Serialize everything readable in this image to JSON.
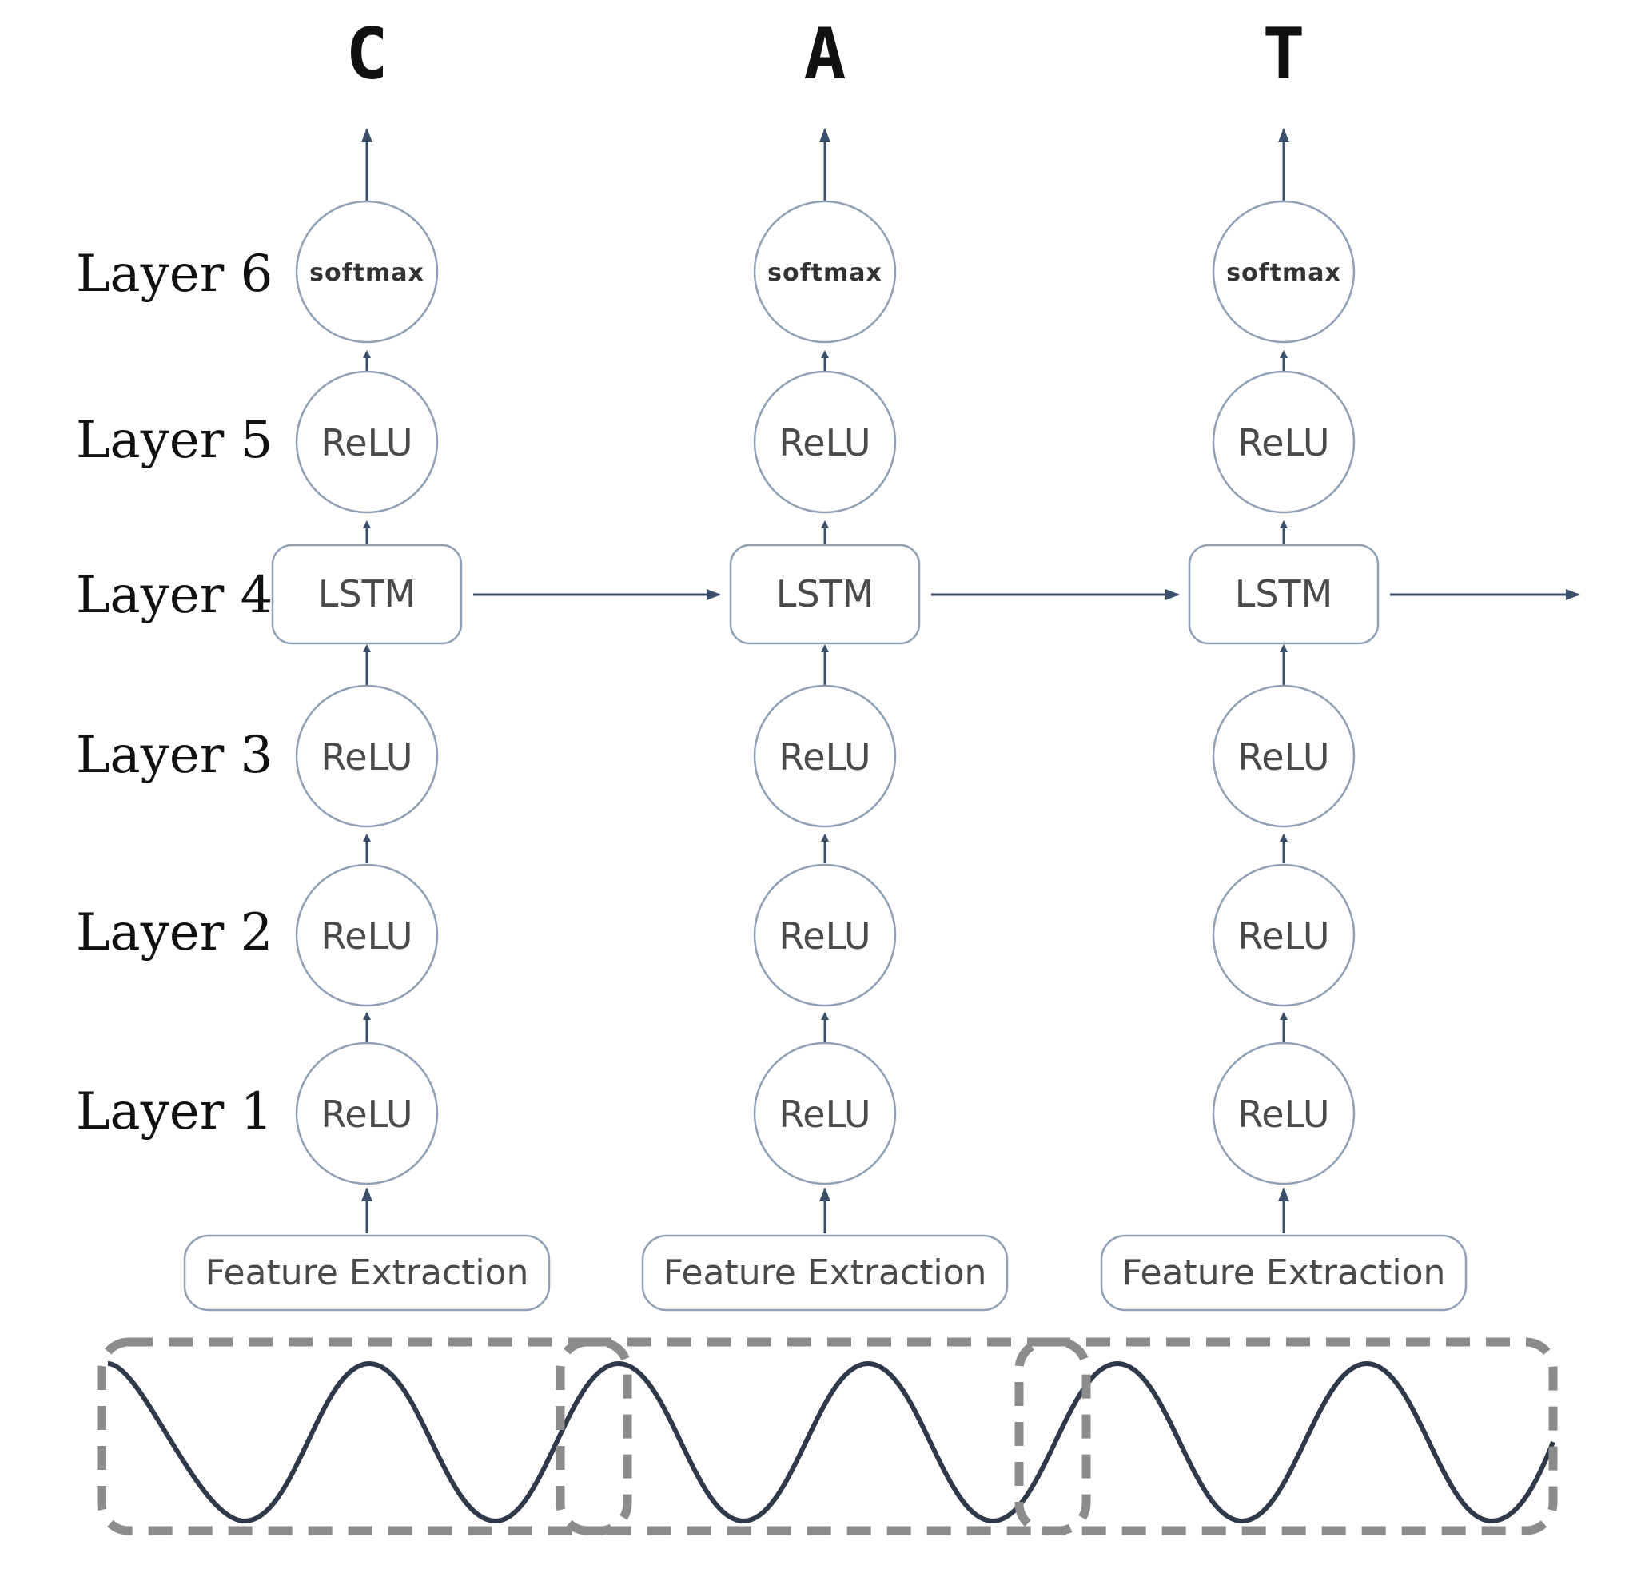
{
  "outputs": [
    "C",
    "A",
    "T"
  ],
  "layer_labels": [
    "Layer 6",
    "Layer 5",
    "Layer 4",
    "Layer 3",
    "Layer 2",
    "Layer 1"
  ],
  "nodes": {
    "softmax": "softmax",
    "relu": "ReLU",
    "lstm": "LSTM",
    "feature_extraction": "Feature Extraction"
  },
  "colors": {
    "node_stroke": "#8fa0b5",
    "edge": "#3b4f6b",
    "window": "#8c8c8c",
    "wave": "#2e3a4a"
  }
}
